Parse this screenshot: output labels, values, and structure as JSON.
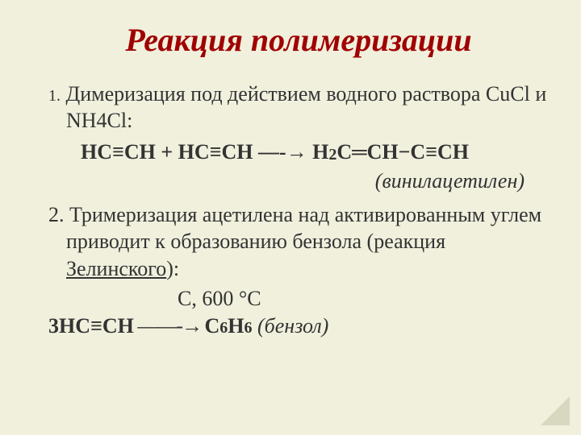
{
  "title": "Реакция полимеризации",
  "item1": {
    "num": "1.",
    "text_a": " Димеризация под действием водного раствора CuCl и NH4Cl:"
  },
  "eq1": {
    "lhs1": "НС≡СН",
    "plus": " + ",
    "lhs2": "НС≡СН",
    "arrow_dash": "  —-→ ",
    "rhs_a": "Н",
    "rhs_sub2": "2",
    "rhs_b": "С",
    "rhs_dbl": "═",
    "rhs_c": "СН−С≡СН"
  },
  "compound1": "(винилацетилен)",
  "item2": {
    "num": "2.",
    "text_a": " Тримеризация ацетилена над активированным углем приводит к образованию бензола (реакция ",
    "link": "Зелинского",
    "text_b": "):"
  },
  "cond": "С, 600 °С",
  "eq2": {
    "lhs": "3НС≡СН",
    "arrow": "     ——-→     ",
    "rhs_a": "С",
    "rhs_sub6a": "6",
    "rhs_b": "H",
    "rhs_sub6b": "6",
    "note": "   (бензол)"
  },
  "colors": {
    "bg": "#f0f0dd",
    "title": "#a00000",
    "text": "#333333"
  }
}
